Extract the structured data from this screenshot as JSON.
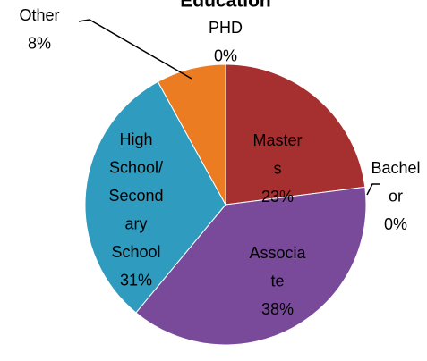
{
  "chart_data": {
    "type": "pie",
    "title": "Education",
    "categories": [
      "PHD",
      "Masters",
      "Bachelor",
      "Associate",
      "High School/Secondary School",
      "Other"
    ],
    "values": [
      0,
      23,
      0,
      38,
      31,
      8
    ],
    "value_labels": [
      "0%",
      "23%",
      "0%",
      "38%",
      "31%",
      "8%"
    ],
    "colors": [
      "#4f81bd",
      "#a5302f",
      "#8fb04a",
      "#7a4a9a",
      "#2f9bbf",
      "#eb7c22"
    ]
  }
}
